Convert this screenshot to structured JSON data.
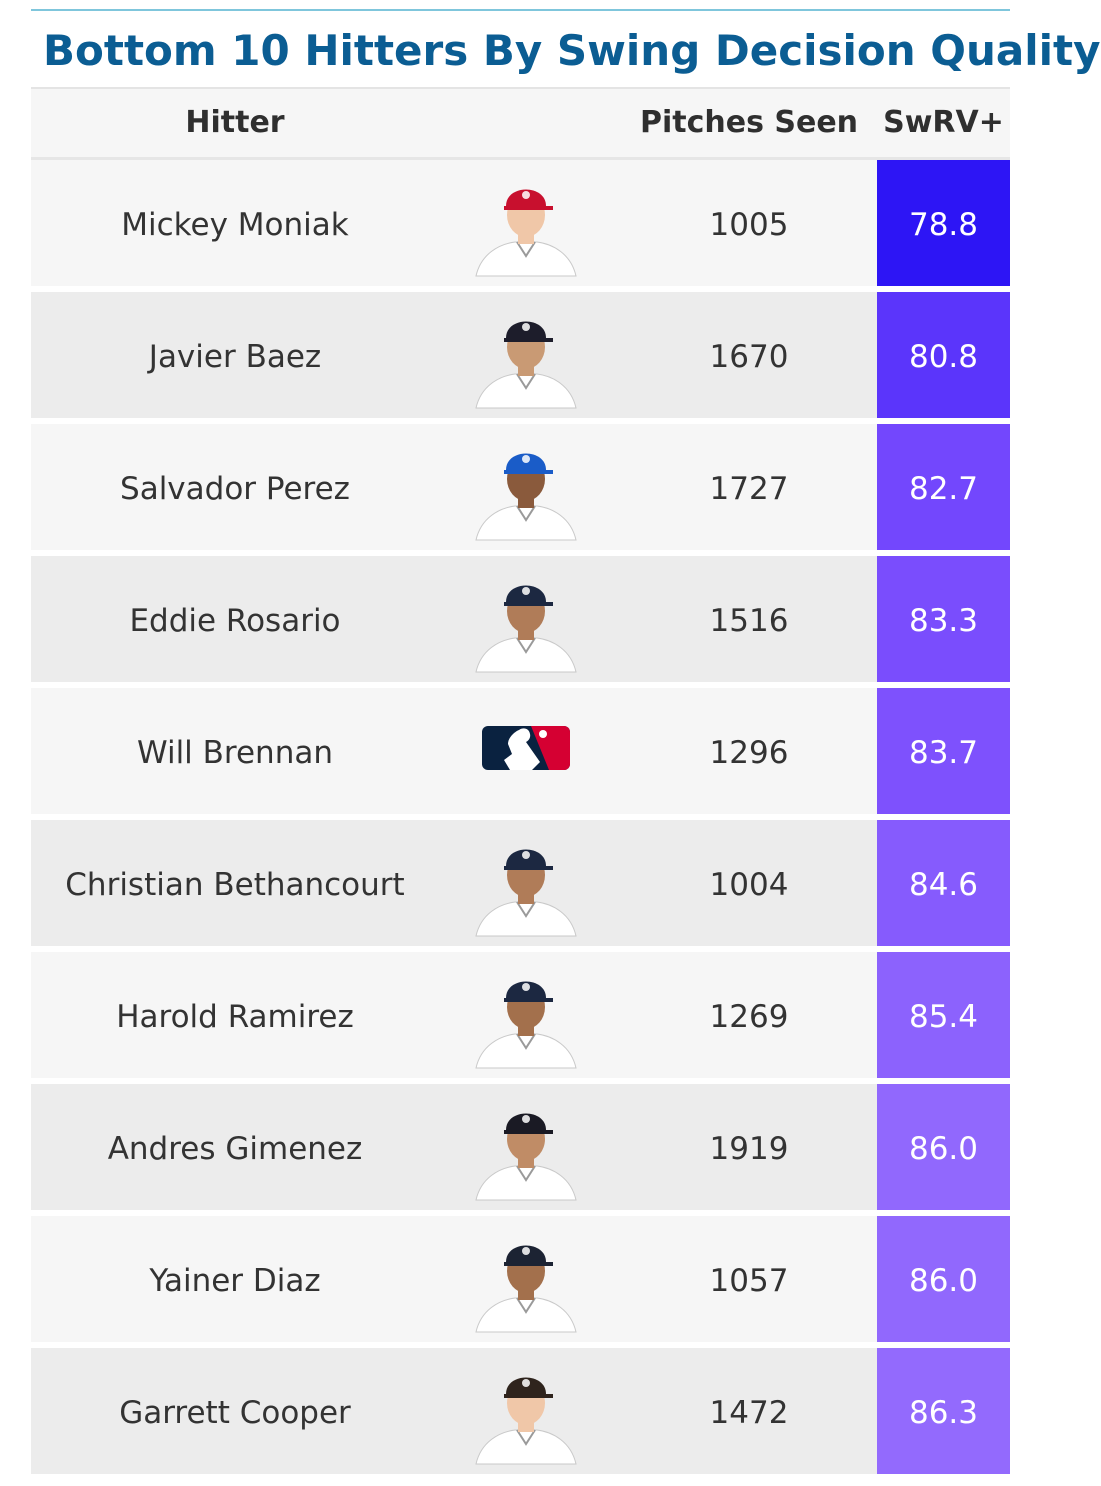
{
  "title": "Bottom 10 Hitters By Swing Decision Quality",
  "columns": {
    "hitter": "Hitter",
    "pitches": "Pitches Seen",
    "swrv": "SwRV+"
  },
  "chart_data": {
    "type": "table",
    "title": "Bottom 10 Hitters By Swing Decision Quality",
    "columns": [
      "Hitter",
      "Pitches Seen",
      "SwRV+"
    ],
    "rows": [
      {
        "hitter": "Mickey Moniak",
        "pitches": "1005",
        "swrv": "78.8",
        "swrv_value": 78.8,
        "color": "#2d15f5",
        "cap": "#c8102e",
        "skin": "#f0c7a8",
        "photo": "player-photo"
      },
      {
        "hitter": "Javier Baez",
        "pitches": "1670",
        "swrv": "80.8",
        "swrv_value": 80.8,
        "color": "#5b35fb",
        "cap": "#1d1d2b",
        "skin": "#c99a74",
        "photo": "player-photo"
      },
      {
        "hitter": "Salvador Perez",
        "pitches": "1727",
        "swrv": "82.7",
        "swrv_value": 82.7,
        "color": "#7347fd",
        "cap": "#1a5cc8",
        "skin": "#8a5a3c",
        "photo": "player-photo"
      },
      {
        "hitter": "Eddie Rosario",
        "pitches": "1516",
        "swrv": "83.3",
        "swrv_value": 83.3,
        "color": "#7a4dfd",
        "cap": "#1c2841",
        "skin": "#b07c58",
        "photo": "player-photo"
      },
      {
        "hitter": "Will Brennan",
        "pitches": "1296",
        "swrv": "83.7",
        "swrv_value": 83.7,
        "color": "#7e51fd",
        "cap": "",
        "skin": "",
        "photo": "mlb-logo"
      },
      {
        "hitter": "Christian Bethancourt",
        "pitches": "1004",
        "swrv": "84.6",
        "swrv_value": 84.6,
        "color": "#865bfd",
        "cap": "#1c2841",
        "skin": "#b07c58",
        "photo": "player-photo"
      },
      {
        "hitter": "Harold Ramirez",
        "pitches": "1269",
        "swrv": "85.4",
        "swrv_value": 85.4,
        "color": "#8c62fd",
        "cap": "#1c2841",
        "skin": "#a3704c",
        "photo": "player-photo"
      },
      {
        "hitter": "Andres Gimenez",
        "pitches": "1919",
        "swrv": "86.0",
        "swrv_value": 86.0,
        "color": "#9168fd",
        "cap": "#1a1a24",
        "skin": "#c08c66",
        "photo": "player-photo"
      },
      {
        "hitter": "Yainer Diaz",
        "pitches": "1057",
        "swrv": "86.0",
        "swrv_value": 86.0,
        "color": "#9168fd",
        "cap": "#1c2333",
        "skin": "#a3704c",
        "photo": "player-photo"
      },
      {
        "hitter": "Garrett Cooper",
        "pitches": "1472",
        "swrv": "86.3",
        "swrv_value": 86.3,
        "color": "#936afd",
        "cap": "#2f241d",
        "skin": "#f0c7a8",
        "photo": "player-photo"
      }
    ]
  }
}
